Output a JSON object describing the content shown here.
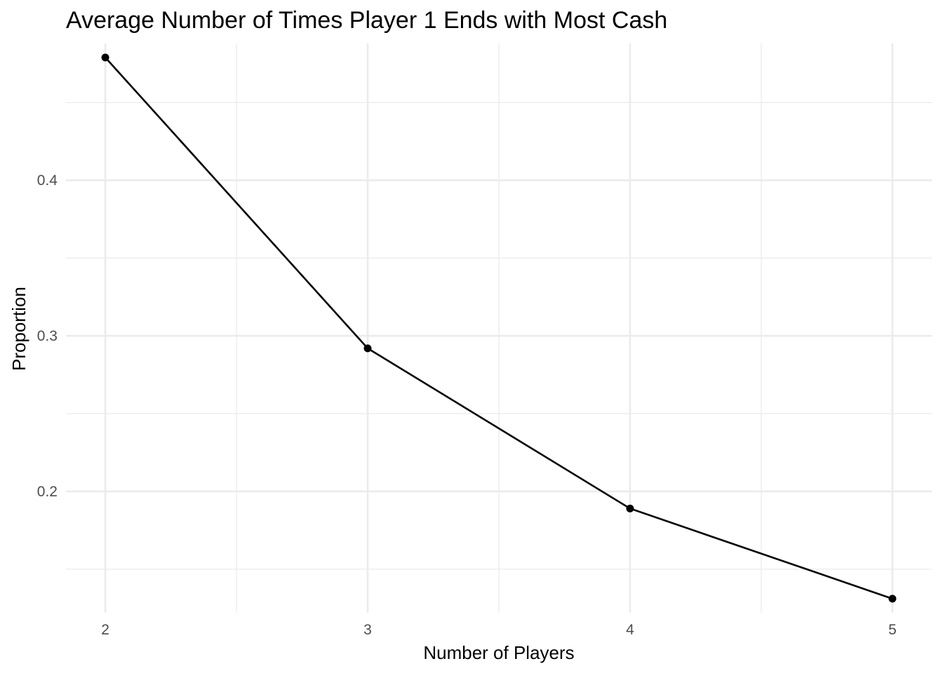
{
  "chart_data": {
    "type": "line",
    "title": "Average Number of Times Player 1 Ends with Most Cash",
    "xlabel": "Number of Players",
    "ylabel": "Proportion",
    "x": [
      2,
      3,
      4,
      5
    ],
    "x_ticks": [
      "2",
      "3",
      "4",
      "5"
    ],
    "y_ticks": [
      "0.2",
      "0.3",
      "0.4"
    ],
    "xlim": [
      1.85,
      5.15
    ],
    "ylim": [
      0.122,
      0.488
    ],
    "grid": true,
    "legend": "none",
    "series": [
      {
        "values": [
          0.479,
          0.292,
          0.189,
          0.131
        ],
        "color": "#000000"
      }
    ]
  }
}
